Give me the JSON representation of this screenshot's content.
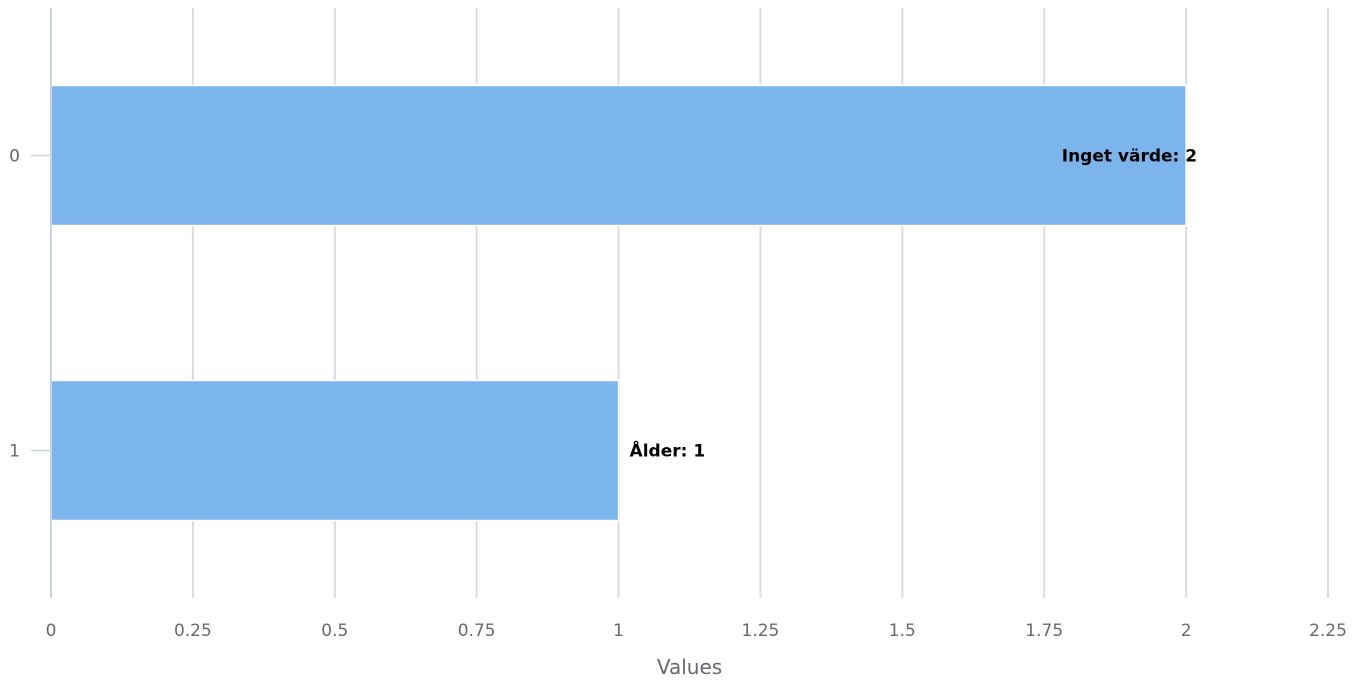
{
  "chart_data": {
    "type": "bar",
    "orientation": "horizontal",
    "categories": [
      "0",
      "1"
    ],
    "values": [
      2,
      1
    ],
    "data_labels": [
      "Inget värde: 2",
      "Ålder: 1"
    ],
    "xlabel": "Values",
    "ylabel": "",
    "xlim": [
      0,
      2.25
    ],
    "x_ticks": [
      "0",
      "0.25",
      "0.5",
      "0.75",
      "1",
      "1.25",
      "1.5",
      "1.75",
      "2",
      "2.25"
    ],
    "grid": "vertical",
    "legend": "none",
    "colors": {
      "bar": "#7cb4ec"
    }
  }
}
